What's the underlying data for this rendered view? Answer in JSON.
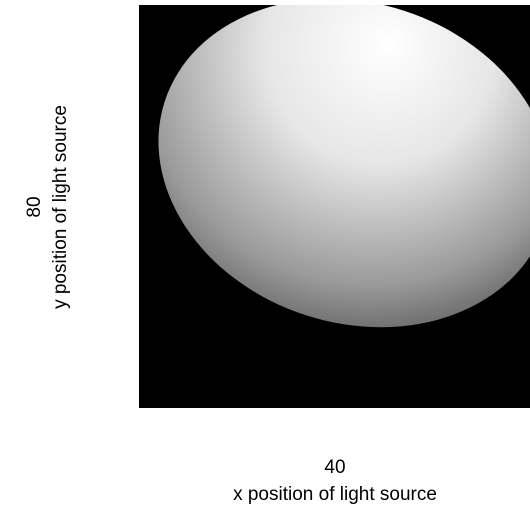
{
  "x_control": {
    "value": "40",
    "label": "x position of light source"
  },
  "y_control": {
    "value": "80",
    "label": "y position of light source"
  }
}
